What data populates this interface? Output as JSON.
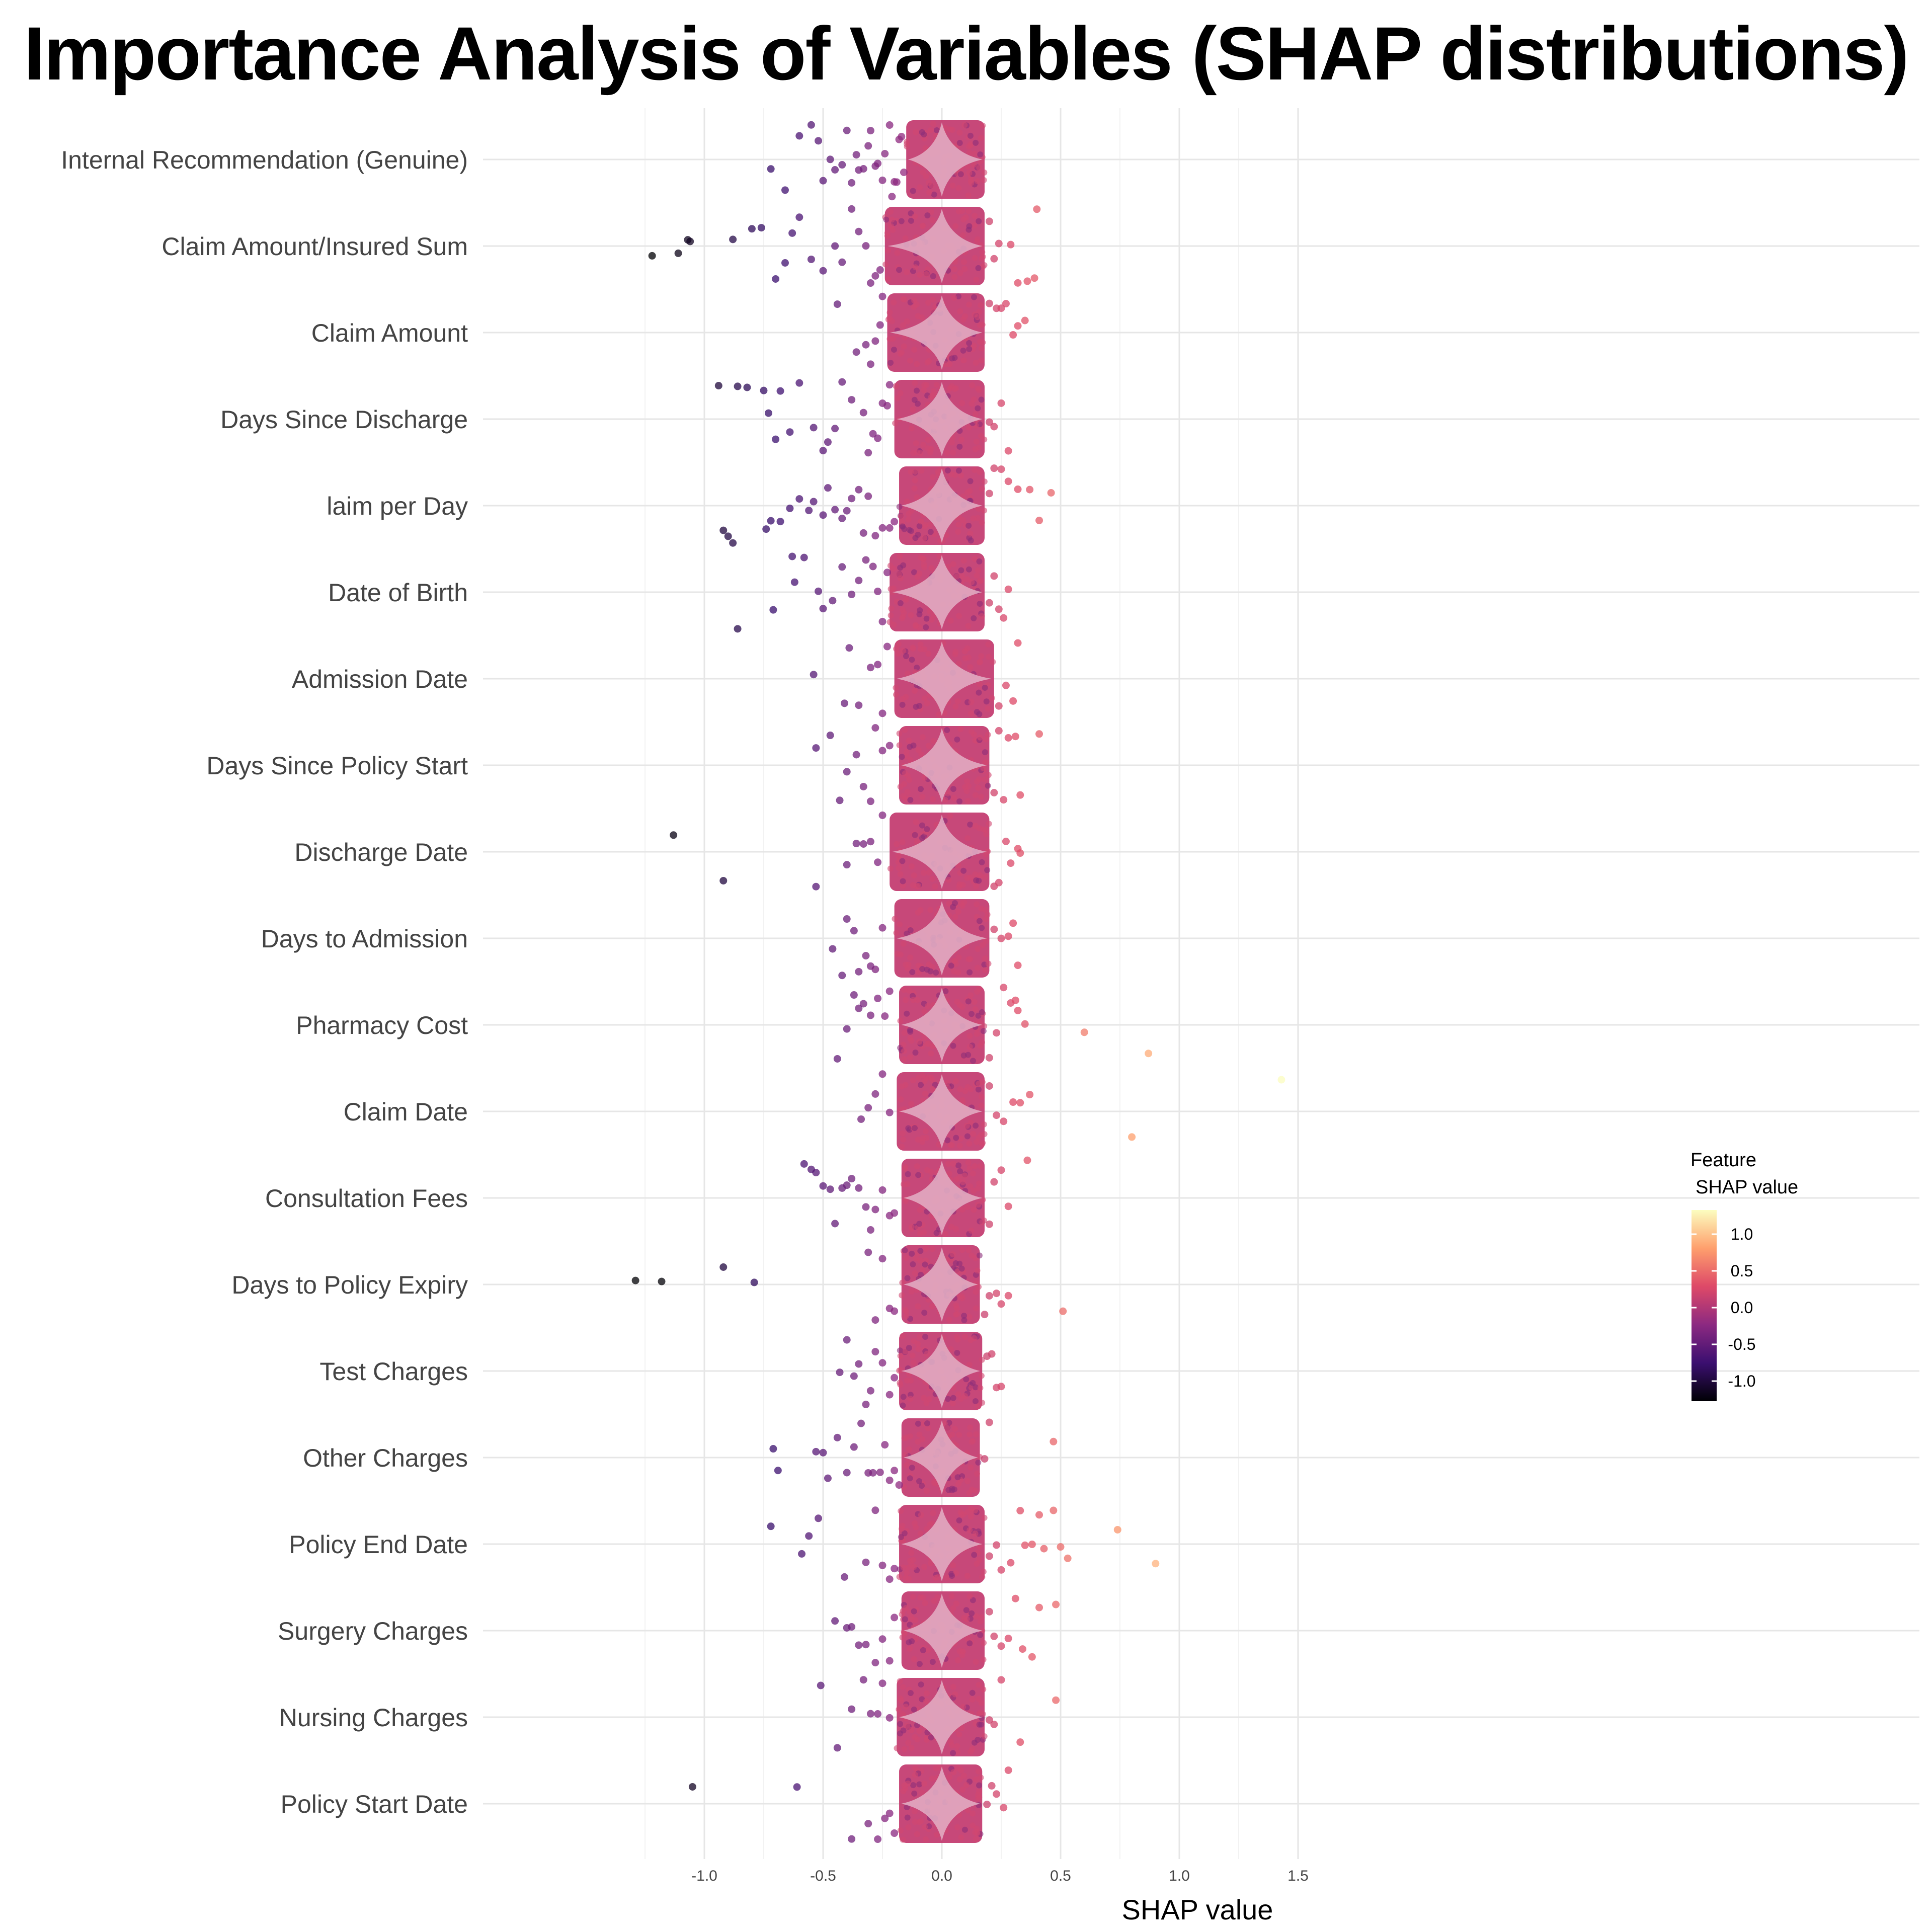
{
  "chart_data": {
    "type": "scatter",
    "subtype": "shap-beeswarm-with-violin",
    "title": "Importance Analysis of Variables (SHAP distributions)",
    "xlabel": "SHAP value",
    "ylabel": "",
    "xlim": [
      -1.5,
      1.55
    ],
    "x_ticks": [
      -1.0,
      -0.5,
      0.0,
      0.5,
      1.0,
      1.5
    ],
    "x_tick_labels": [
      "-1.0",
      "-0.5",
      "0.0",
      "0.5",
      "1.0",
      "1.5"
    ],
    "grid": true,
    "legend": {
      "title_line1": "Feature",
      "title_line2": "SHAP value",
      "placement": "right",
      "range": [
        -1.2,
        1.3
      ],
      "ticks": [
        1.0,
        0.5,
        0.0,
        -0.5,
        -1.0
      ],
      "tick_labels": [
        "1.0",
        "0.5",
        "0.0",
        "-0.5",
        "-1.0"
      ],
      "colors": [
        "#000004",
        "#3b0f70",
        "#8c2981",
        "#de4968",
        "#fe9f6d",
        "#fcfdbf"
      ]
    },
    "series": [
      {
        "feature": "Internal Recommendation (Genuine)",
        "core": [
          -0.15,
          0.18
        ],
        "outliers": [
          -0.72,
          -0.66,
          -0.6,
          -0.55,
          -0.52,
          -0.5,
          -0.47,
          -0.45,
          -0.42,
          -0.4,
          -0.38,
          -0.36,
          -0.35,
          -0.33,
          -0.31,
          -0.3,
          -0.28,
          -0.27,
          -0.25,
          -0.24,
          -0.22,
          -0.21,
          -0.2,
          -0.19,
          -0.18,
          -0.17,
          -0.16
        ]
      },
      {
        "feature": "Claim Amount/Insured Sum",
        "core": [
          -0.24,
          0.18
        ],
        "outliers": [
          -1.22,
          -1.11,
          -1.07,
          -1.06,
          -0.88,
          -0.8,
          -0.76,
          -0.7,
          -0.66,
          -0.63,
          -0.6,
          -0.55,
          -0.5,
          -0.45,
          -0.42,
          -0.38,
          -0.35,
          -0.32,
          -0.3,
          -0.28,
          -0.26,
          0.2,
          0.22,
          0.24,
          0.29,
          0.32,
          0.36,
          0.39,
          0.4
        ]
      },
      {
        "feature": "Claim Amount",
        "core": [
          -0.23,
          0.18
        ],
        "outliers": [
          -0.44,
          -0.36,
          -0.32,
          -0.3,
          -0.28,
          -0.26,
          -0.25,
          0.2,
          0.23,
          0.25,
          0.27,
          0.3,
          0.32,
          0.35
        ]
      },
      {
        "feature": "Days Since Discharge",
        "core": [
          -0.2,
          0.18
        ],
        "outliers": [
          -0.94,
          -0.86,
          -0.82,
          -0.75,
          -0.73,
          -0.7,
          -0.68,
          -0.64,
          -0.6,
          -0.54,
          -0.5,
          -0.48,
          -0.45,
          -0.42,
          -0.38,
          -0.33,
          -0.31,
          -0.29,
          -0.27,
          -0.25,
          -0.23,
          -0.22,
          0.2,
          0.22,
          0.25,
          0.28
        ]
      },
      {
        "feature": "laim per Day",
        "core": [
          -0.18,
          0.18
        ],
        "outliers": [
          -0.92,
          -0.9,
          -0.88,
          -0.74,
          -0.72,
          -0.68,
          -0.64,
          -0.6,
          -0.56,
          -0.54,
          -0.5,
          -0.48,
          -0.45,
          -0.42,
          -0.4,
          -0.38,
          -0.35,
          -0.33,
          -0.31,
          -0.28,
          -0.25,
          -0.22,
          -0.2,
          0.2,
          0.22,
          0.25,
          0.28,
          0.32,
          0.37,
          0.41,
          0.46
        ]
      },
      {
        "feature": "Date of Birth",
        "core": [
          -0.22,
          0.18
        ],
        "outliers": [
          -0.86,
          -0.71,
          -0.63,
          -0.62,
          -0.58,
          -0.52,
          -0.5,
          -0.46,
          -0.42,
          -0.38,
          -0.35,
          -0.32,
          -0.29,
          -0.27,
          -0.25,
          -0.23,
          0.2,
          0.22,
          0.24,
          0.26,
          0.28
        ]
      },
      {
        "feature": "Admission Date",
        "core": [
          -0.2,
          0.22
        ],
        "outliers": [
          -0.54,
          -0.41,
          -0.39,
          -0.35,
          -0.3,
          -0.27,
          -0.25,
          -0.23,
          0.24,
          0.27,
          0.3,
          0.32
        ]
      },
      {
        "feature": "Days Since Policy Start",
        "core": [
          -0.18,
          0.2
        ],
        "outliers": [
          -0.53,
          -0.47,
          -0.43,
          -0.4,
          -0.36,
          -0.33,
          -0.3,
          -0.28,
          -0.25,
          -0.22,
          0.22,
          0.24,
          0.26,
          0.28,
          0.31,
          0.33,
          0.41
        ]
      },
      {
        "feature": "Discharge Date",
        "core": [
          -0.22,
          0.2
        ],
        "outliers": [
          -1.13,
          -0.92,
          -0.53,
          -0.4,
          -0.36,
          -0.33,
          -0.3,
          -0.27,
          -0.25,
          0.22,
          0.24,
          0.27,
          0.29,
          0.32,
          0.33
        ]
      },
      {
        "feature": "Days to Admission",
        "core": [
          -0.2,
          0.2
        ],
        "outliers": [
          -0.46,
          -0.42,
          -0.4,
          -0.37,
          -0.35,
          -0.32,
          -0.3,
          -0.28,
          -0.25,
          0.22,
          0.25,
          0.28,
          0.3,
          0.32
        ]
      },
      {
        "feature": "Pharmacy Cost",
        "core": [
          -0.18,
          0.18
        ],
        "outliers": [
          -0.44,
          -0.4,
          -0.37,
          -0.35,
          -0.33,
          -0.3,
          -0.27,
          -0.24,
          -0.22,
          0.2,
          0.23,
          0.26,
          0.29,
          0.31,
          0.32,
          0.35,
          0.6,
          0.87
        ]
      },
      {
        "feature": "Claim Date",
        "core": [
          -0.19,
          0.18
        ],
        "outliers": [
          -0.34,
          -0.31,
          -0.28,
          -0.25,
          -0.22,
          0.2,
          0.23,
          0.26,
          0.3,
          0.33,
          0.37,
          0.8,
          1.43
        ]
      },
      {
        "feature": "Consultation Fees",
        "core": [
          -0.17,
          0.18
        ],
        "outliers": [
          -0.58,
          -0.55,
          -0.53,
          -0.5,
          -0.47,
          -0.45,
          -0.42,
          -0.4,
          -0.38,
          -0.35,
          -0.32,
          -0.3,
          -0.28,
          -0.25,
          -0.22,
          -0.2,
          0.2,
          0.22,
          0.25,
          0.28,
          0.36
        ]
      },
      {
        "feature": "Days to Policy Expiry",
        "core": [
          -0.17,
          0.16
        ],
        "outliers": [
          -1.29,
          -1.18,
          -0.92,
          -0.79,
          -0.31,
          -0.28,
          -0.25,
          -0.22,
          -0.2,
          0.18,
          0.2,
          0.23,
          0.25,
          0.28,
          0.51
        ]
      },
      {
        "feature": "Test Charges",
        "core": [
          -0.18,
          0.17
        ],
        "outliers": [
          -0.43,
          -0.4,
          -0.37,
          -0.35,
          -0.32,
          -0.3,
          -0.28,
          -0.25,
          -0.22,
          -0.2,
          0.19,
          0.21,
          0.23,
          0.25
        ]
      },
      {
        "feature": "Other Charges",
        "core": [
          -0.17,
          0.16
        ],
        "outliers": [
          -0.71,
          -0.69,
          -0.53,
          -0.5,
          -0.48,
          -0.44,
          -0.4,
          -0.37,
          -0.34,
          -0.31,
          -0.29,
          -0.26,
          -0.24,
          -0.22,
          -0.2,
          -0.18,
          0.18,
          0.2,
          0.47
        ]
      },
      {
        "feature": "Policy End Date",
        "core": [
          -0.18,
          0.18
        ],
        "outliers": [
          -0.72,
          -0.59,
          -0.56,
          -0.52,
          -0.41,
          -0.32,
          -0.28,
          -0.25,
          -0.22,
          -0.2,
          0.2,
          0.23,
          0.25,
          0.29,
          0.33,
          0.35,
          0.38,
          0.41,
          0.43,
          0.47,
          0.5,
          0.53,
          0.74,
          0.9
        ]
      },
      {
        "feature": "Surgery Charges",
        "core": [
          -0.17,
          0.18
        ],
        "outliers": [
          -0.45,
          -0.4,
          -0.38,
          -0.35,
          -0.32,
          -0.28,
          -0.25,
          -0.22,
          -0.2,
          0.2,
          0.22,
          0.25,
          0.28,
          0.31,
          0.34,
          0.38,
          0.41,
          0.48
        ]
      },
      {
        "feature": "Nursing Charges",
        "core": [
          -0.19,
          0.18
        ],
        "outliers": [
          -0.51,
          -0.44,
          -0.38,
          -0.33,
          -0.3,
          -0.27,
          -0.25,
          -0.22,
          0.2,
          0.22,
          0.25,
          0.33,
          0.48
        ]
      },
      {
        "feature": "Policy Start Date",
        "core": [
          -0.18,
          0.17
        ],
        "outliers": [
          -1.05,
          -0.61,
          -0.38,
          -0.31,
          -0.27,
          -0.24,
          -0.22,
          -0.2,
          0.19,
          0.21,
          0.23,
          0.26,
          0.28
        ]
      }
    ]
  }
}
